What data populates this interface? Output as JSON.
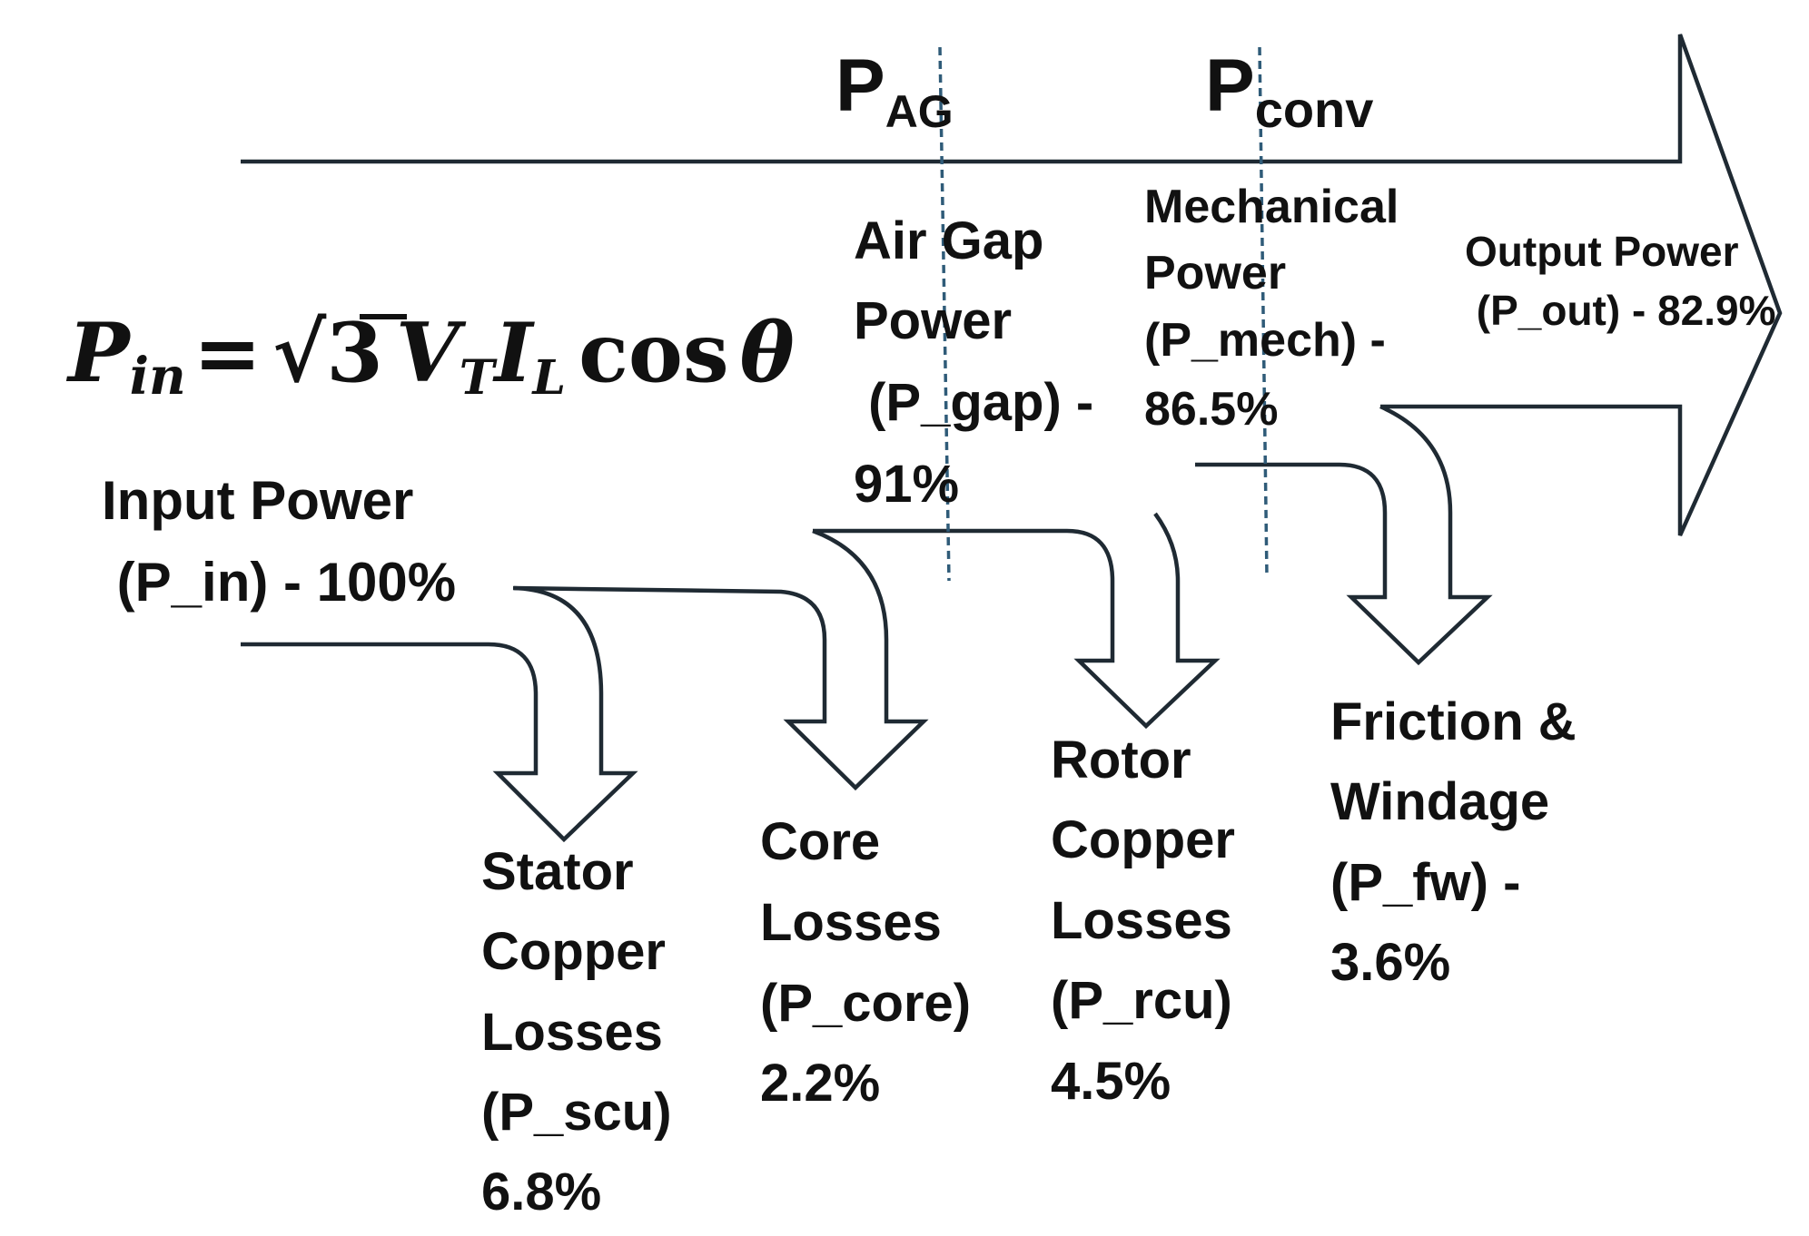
{
  "equation": {
    "lhs_symbol": "P",
    "lhs_subscript": "in",
    "equals": "=",
    "root_symbol": "√",
    "root_value": "3",
    "v_symbol": "V",
    "v_subscript": "T",
    "i_symbol": "I",
    "i_subscript": "L",
    "cos": "cos",
    "theta": "θ"
  },
  "points": {
    "pag_main": "P",
    "pag_sub": "AG",
    "pconv_main": "P",
    "pconv_sub": "conv"
  },
  "stages": {
    "input": [
      "Input Power",
      " (P_in) - 100%"
    ],
    "air_gap": [
      "Air Gap",
      "Power",
      " (P_gap) -",
      "91%"
    ],
    "mechanical": [
      "Mechanical",
      "Power",
      "(P_mech) -",
      "86.5%"
    ],
    "output": [
      "Output Power",
      " (P_out) - 82.9%"
    ]
  },
  "losses": {
    "stator": [
      "Stator",
      "Copper",
      "Losses",
      "(P_scu)",
      "6.8%"
    ],
    "core": [
      "Core",
      "Losses",
      "(P_core)",
      "2.2%"
    ],
    "rotor": [
      "Rotor",
      "Copper",
      "Losses",
      "(P_rcu)",
      "4.5%"
    ],
    "friction": [
      "Friction &",
      "Windage",
      "(P_fw) -",
      "3.6%"
    ]
  },
  "colors": {
    "outline": "#1f2a33",
    "dashed_line": "#2f5b78",
    "text": "#111111"
  }
}
